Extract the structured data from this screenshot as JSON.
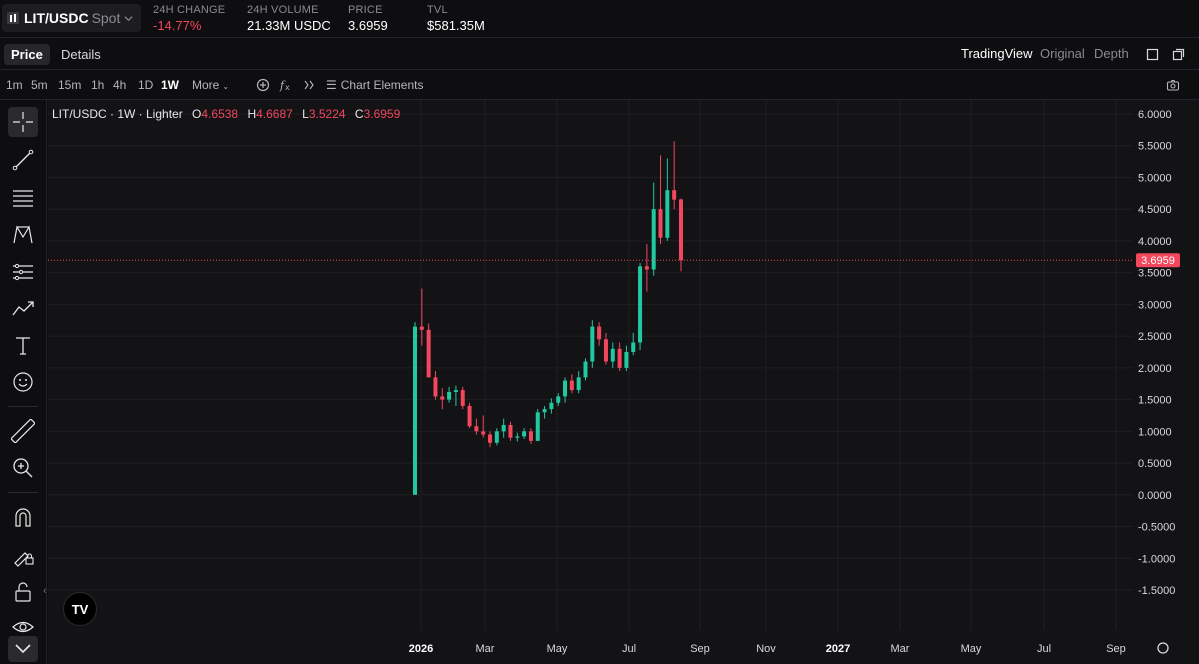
{
  "header": {
    "pair": "LIT/USDC",
    "market_type": "Spot",
    "stats": [
      {
        "label": "24H CHANGE",
        "value": "-14.77%",
        "negative": true
      },
      {
        "label": "24H VOLUME",
        "value": "21.33M USDC",
        "negative": false
      },
      {
        "label": "PRICE",
        "value": "3.6959",
        "negative": false
      },
      {
        "label": "TVL",
        "value": "$581.35M",
        "negative": false
      }
    ]
  },
  "tabs": {
    "price": "Price",
    "details": "Details",
    "view_modes": [
      "TradingView",
      "Original",
      "Depth"
    ],
    "active_view": "TradingView"
  },
  "toolbar": {
    "intervals": [
      "1m",
      "5m",
      "15m",
      "1h",
      "4h",
      "1D",
      "1W"
    ],
    "active_interval": "1W",
    "more": "More",
    "chart_elements": "Chart Elements"
  },
  "left_tools": [
    "crosshair-icon",
    "trend-line-icon",
    "fib-retracement-icon",
    "pattern-icon",
    "prediction-icon",
    "brush-icon",
    "text-icon",
    "emoji-icon",
    "ruler-icon",
    "zoom-in-icon",
    "magnet-icon",
    "lock-drawing-icon",
    "lock-icon",
    "eye-icon",
    "chevron-down-icon"
  ],
  "legend": {
    "title": "LIT/USDC · 1W · Lighter",
    "o_label": "O",
    "o": "4.6538",
    "h_label": "H",
    "h": "4.6687",
    "l_label": "L",
    "l": "3.5224",
    "c_label": "C",
    "c": "3.6959"
  },
  "colors": {
    "up": "#22c8a0",
    "down": "#f2475d",
    "background": "#131316",
    "grid": "#1f1f23"
  },
  "logo_text": "TV",
  "chart_data": {
    "type": "candlestick",
    "y_ticks": [
      "6.0000",
      "5.5000",
      "5.0000",
      "4.5000",
      "4.0000",
      "3.5000",
      "3.0000",
      "2.5000",
      "2.0000",
      "1.5000",
      "1.0000",
      "0.5000",
      "0.0000",
      "-0.5000",
      "-1.0000",
      "-1.5000"
    ],
    "ylim": [
      -1.5,
      6.0
    ],
    "x_ticks": [
      "2026",
      "Mar",
      "May",
      "Jul",
      "Sep",
      "Nov",
      "2027",
      "Mar",
      "May",
      "Jul",
      "Sep"
    ],
    "last_price": 3.6959,
    "last_price_label": "3.6959",
    "candles": [
      {
        "o": 0.0,
        "h": 2.72,
        "l": 0.0,
        "c": 2.65
      },
      {
        "o": 2.65,
        "h": 3.25,
        "l": 2.35,
        "c": 2.6
      },
      {
        "o": 2.6,
        "h": 2.7,
        "l": 1.85,
        "c": 1.85
      },
      {
        "o": 1.85,
        "h": 1.95,
        "l": 1.5,
        "c": 1.55
      },
      {
        "o": 1.55,
        "h": 1.68,
        "l": 1.35,
        "c": 1.5
      },
      {
        "o": 1.5,
        "h": 1.7,
        "l": 1.45,
        "c": 1.62
      },
      {
        "o": 1.62,
        "h": 1.72,
        "l": 1.4,
        "c": 1.65
      },
      {
        "o": 1.65,
        "h": 1.7,
        "l": 1.35,
        "c": 1.4
      },
      {
        "o": 1.4,
        "h": 1.45,
        "l": 1.05,
        "c": 1.08
      },
      {
        "o": 1.08,
        "h": 1.2,
        "l": 0.95,
        "c": 1.0
      },
      {
        "o": 1.0,
        "h": 1.25,
        "l": 0.9,
        "c": 0.95
      },
      {
        "o": 0.95,
        "h": 1.0,
        "l": 0.75,
        "c": 0.82
      },
      {
        "o": 0.82,
        "h": 1.05,
        "l": 0.78,
        "c": 1.0
      },
      {
        "o": 1.0,
        "h": 1.2,
        "l": 0.9,
        "c": 1.1
      },
      {
        "o": 1.1,
        "h": 1.15,
        "l": 0.85,
        "c": 0.9
      },
      {
        "o": 0.9,
        "h": 0.98,
        "l": 0.84,
        "c": 0.92
      },
      {
        "o": 0.92,
        "h": 1.05,
        "l": 0.88,
        "c": 1.0
      },
      {
        "o": 1.0,
        "h": 1.05,
        "l": 0.8,
        "c": 0.85
      },
      {
        "o": 0.85,
        "h": 1.35,
        "l": 0.85,
        "c": 1.3
      },
      {
        "o": 1.3,
        "h": 1.4,
        "l": 1.2,
        "c": 1.35
      },
      {
        "o": 1.35,
        "h": 1.52,
        "l": 1.28,
        "c": 1.45
      },
      {
        "o": 1.45,
        "h": 1.6,
        "l": 1.4,
        "c": 1.55
      },
      {
        "o": 1.55,
        "h": 1.85,
        "l": 1.45,
        "c": 1.8
      },
      {
        "o": 1.8,
        "h": 1.9,
        "l": 1.6,
        "c": 1.65
      },
      {
        "o": 1.65,
        "h": 1.95,
        "l": 1.6,
        "c": 1.85
      },
      {
        "o": 1.85,
        "h": 2.15,
        "l": 1.8,
        "c": 2.1
      },
      {
        "o": 2.1,
        "h": 2.75,
        "l": 2.0,
        "c": 2.65
      },
      {
        "o": 2.65,
        "h": 2.72,
        "l": 2.35,
        "c": 2.45
      },
      {
        "o": 2.45,
        "h": 2.55,
        "l": 2.05,
        "c": 2.1
      },
      {
        "o": 2.1,
        "h": 2.4,
        "l": 2.0,
        "c": 2.3
      },
      {
        "o": 2.3,
        "h": 2.4,
        "l": 1.95,
        "c": 2.0
      },
      {
        "o": 2.0,
        "h": 2.35,
        "l": 1.95,
        "c": 2.25
      },
      {
        "o": 2.25,
        "h": 2.55,
        "l": 2.2,
        "c": 2.4
      },
      {
        "o": 2.4,
        "h": 3.65,
        "l": 2.28,
        "c": 3.6
      },
      {
        "o": 3.6,
        "h": 3.95,
        "l": 3.2,
        "c": 3.55
      },
      {
        "o": 3.55,
        "h": 4.92,
        "l": 3.45,
        "c": 4.5
      },
      {
        "o": 4.5,
        "h": 5.35,
        "l": 3.95,
        "c": 4.05
      },
      {
        "o": 4.05,
        "h": 5.3,
        "l": 4.0,
        "c": 4.8
      },
      {
        "o": 4.8,
        "h": 5.57,
        "l": 4.5,
        "c": 4.65
      },
      {
        "o": 4.6538,
        "h": 4.6687,
        "l": 3.5224,
        "c": 3.6959
      }
    ]
  }
}
